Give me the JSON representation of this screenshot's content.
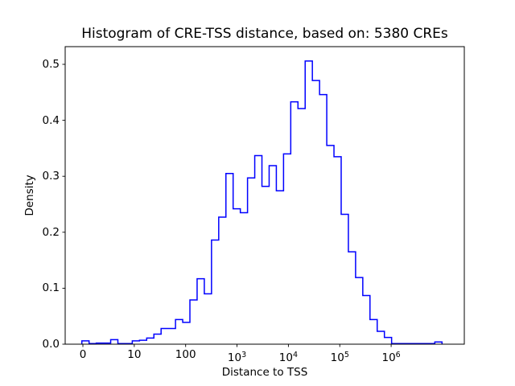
{
  "figure": {
    "title": "Histogram of CRE-TSS distance, based on: 5380 CREs",
    "xlabel": "Distance to TSS",
    "ylabel": "Density"
  },
  "chart_data": {
    "type": "bar",
    "subtype": "step-histogram",
    "title": "Histogram of CRE-TSS distance, based on: 5380 CREs",
    "xlabel": "Distance to TSS",
    "ylabel": "Density",
    "n_cres": 5380,
    "line_color": "#0000ff",
    "axis_color": "#000000",
    "background_color": "#ffffff",
    "x_scale": "log10(distance+1) decades, symlog-style tick labels",
    "xlim_decades": [
      -0.345,
      7.43
    ],
    "ylim": [
      0,
      0.532
    ],
    "grid": false,
    "legend": "none",
    "x_ticks": [
      {
        "t": 0,
        "label": "0"
      },
      {
        "t": 1,
        "label": "10"
      },
      {
        "t": 2,
        "label": "100"
      },
      {
        "t": 3,
        "base": "10",
        "exp": "3"
      },
      {
        "t": 4,
        "base": "10",
        "exp": "4"
      },
      {
        "t": 5,
        "base": "10",
        "exp": "5"
      },
      {
        "t": 6,
        "base": "10",
        "exp": "6"
      }
    ],
    "y_ticks": [
      {
        "v": 0.0,
        "label": "0.0"
      },
      {
        "v": 0.1,
        "label": "0.1"
      },
      {
        "v": 0.2,
        "label": "0.2"
      },
      {
        "v": 0.3,
        "label": "0.3"
      },
      {
        "v": 0.4,
        "label": "0.4"
      },
      {
        "v": 0.5,
        "label": "0.5"
      }
    ],
    "bins": {
      "count": 50,
      "start_decade": -0.02,
      "width_decade": 0.1402
    },
    "densities": [
      0.006,
      0.001,
      0.002,
      0.002,
      0.008,
      0.001,
      0.001,
      0.006,
      0.007,
      0.011,
      0.018,
      0.028,
      0.028,
      0.044,
      0.039,
      0.079,
      0.117,
      0.09,
      0.186,
      0.227,
      0.305,
      0.242,
      0.235,
      0.297,
      0.337,
      0.282,
      0.319,
      0.274,
      0.34,
      0.433,
      0.421,
      0.506,
      0.471,
      0.446,
      0.355,
      0.335,
      0.232,
      0.165,
      0.119,
      0.087,
      0.044,
      0.023,
      0.012,
      0.001,
      0.001,
      0.001,
      0.001,
      0.001,
      0.001,
      0.004
    ]
  }
}
